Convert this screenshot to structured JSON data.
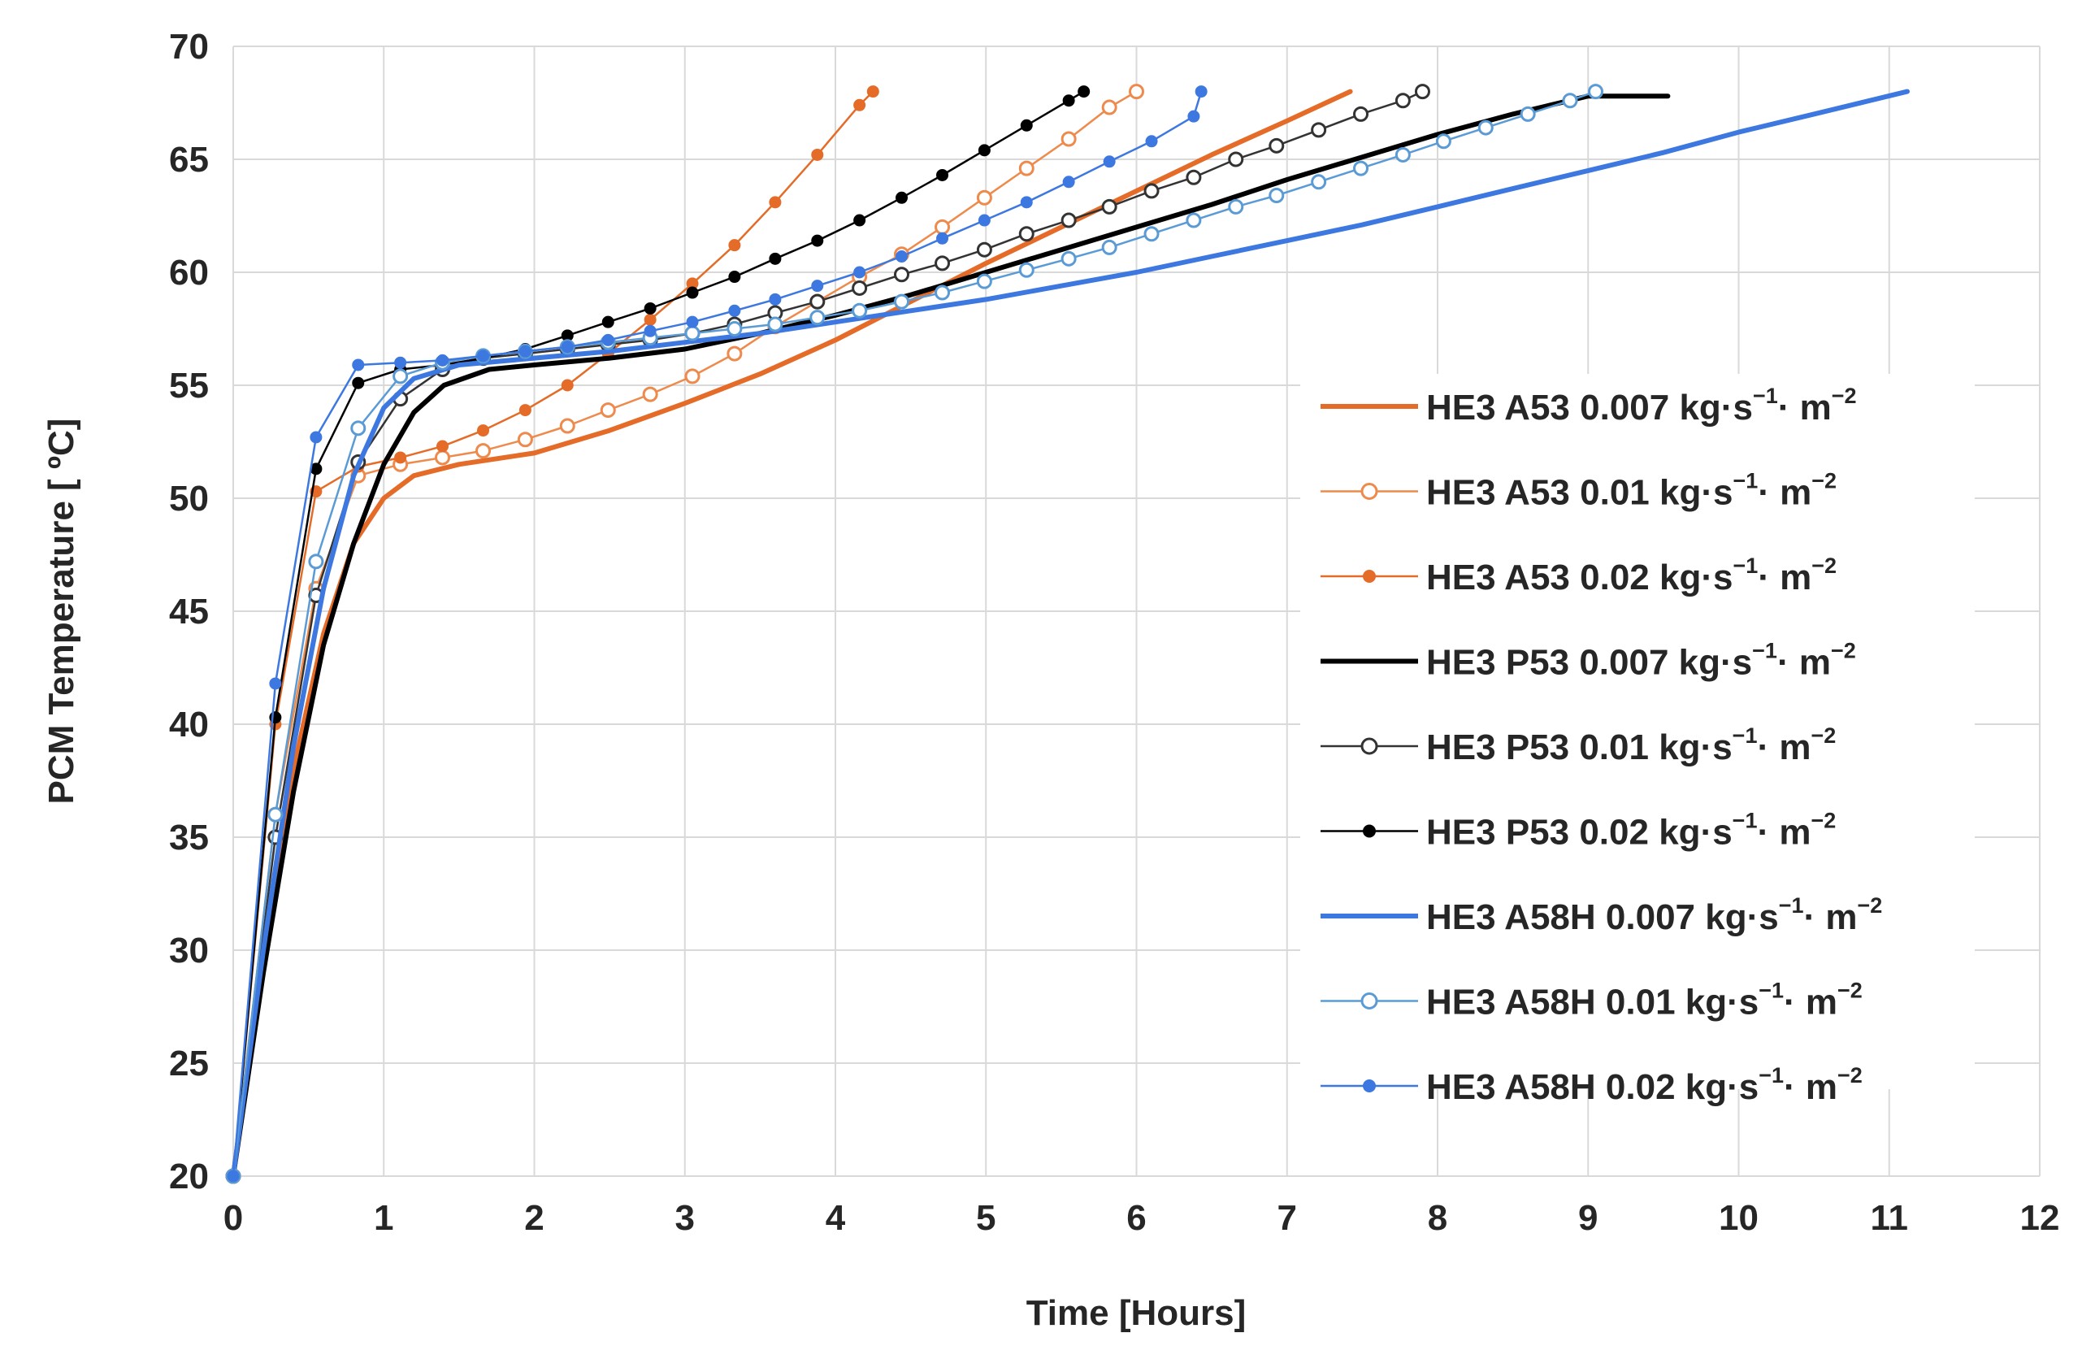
{
  "chart_data": {
    "type": "line",
    "title": "",
    "xlabel": "Time [Hours]",
    "ylabel": "PCM Temperature [ ºC]",
    "xlim": [
      0,
      12
    ],
    "ylim": [
      20,
      70
    ],
    "x_ticks": [
      0,
      1,
      2,
      3,
      4,
      5,
      6,
      7,
      8,
      9,
      10,
      11,
      12
    ],
    "y_ticks": [
      20,
      25,
      30,
      35,
      40,
      45,
      50,
      55,
      60,
      65,
      70
    ],
    "grid": true,
    "legend_position": "right",
    "series": [
      {
        "name": "HE3 A53 0.007 kg·s⁻¹· m⁻²",
        "legend_text": "HE3 A53 0.007 kg·s",
        "legend_sup1": "−1",
        "legend_mid": "· m",
        "legend_sup2": "−2",
        "color": "#e46c28",
        "marker": "none",
        "width": 6,
        "x": [
          0,
          0.2,
          0.4,
          0.6,
          0.8,
          1.0,
          1.2,
          1.5,
          2.0,
          2.5,
          3.0,
          3.5,
          4.0,
          4.5,
          5.0,
          5.5,
          6.0,
          6.5,
          7.0,
          7.42
        ],
        "y": [
          20,
          30,
          38,
          44,
          48,
          50,
          51,
          51.5,
          52,
          53,
          54.2,
          55.5,
          57,
          58.7,
          60.4,
          62,
          63.6,
          65.2,
          66.7,
          68
        ]
      },
      {
        "name": "HE3 A53 0.01 kg·s⁻¹· m⁻²",
        "legend_text": "HE3 A53 0.01 kg·s",
        "legend_sup1": "−1",
        "legend_mid": "· m",
        "legend_sup2": "−2",
        "color": "#ed8a4c",
        "marker": "open-circle",
        "width": 2.5,
        "x": [
          0,
          0.28,
          0.55,
          0.83,
          1.11,
          1.39,
          1.66,
          1.94,
          2.22,
          2.49,
          2.77,
          3.05,
          3.33,
          3.6,
          3.88,
          4.16,
          4.44,
          4.71,
          4.99,
          5.27,
          5.55,
          5.82,
          6.0
        ],
        "y": [
          20,
          36,
          46,
          51,
          51.5,
          51.8,
          52.1,
          52.6,
          53.2,
          53.9,
          54.6,
          55.4,
          56.4,
          57.6,
          58.7,
          59.8,
          60.8,
          62,
          63.3,
          64.6,
          65.9,
          67.3,
          68
        ]
      },
      {
        "name": "HE3 A53 0.02 kg·s⁻¹· m⁻²",
        "legend_text": "HE3 A53 0.02 kg·s",
        "legend_sup1": "−1",
        "legend_mid": "· m",
        "legend_sup2": "−2",
        "color": "#e46c28",
        "marker": "filled-circle",
        "width": 2.5,
        "x": [
          0,
          0.28,
          0.55,
          0.83,
          1.11,
          1.39,
          1.66,
          1.94,
          2.22,
          2.49,
          2.77,
          3.05,
          3.33,
          3.6,
          3.88,
          4.16,
          4.25
        ],
        "y": [
          20,
          40,
          50.3,
          51.4,
          51.8,
          52.3,
          53,
          53.9,
          55,
          56.4,
          57.9,
          59.5,
          61.2,
          63.1,
          65.2,
          67.4,
          68
        ]
      },
      {
        "name": "HE3 P53 0.007 kg·s⁻¹· m⁻²",
        "legend_text": "HE3 P53 0.007 kg·s",
        "legend_sup1": "−1",
        "legend_mid": "· m",
        "legend_sup2": "−2",
        "color": "#000000",
        "marker": "none",
        "width": 6,
        "x": [
          0,
          0.2,
          0.4,
          0.6,
          0.8,
          1.0,
          1.2,
          1.4,
          1.7,
          2.0,
          2.5,
          3.0,
          3.5,
          4.0,
          4.5,
          5.0,
          5.5,
          6.0,
          6.5,
          7.0,
          7.5,
          8.0,
          8.5,
          9.0,
          9.53
        ],
        "y": [
          20,
          29,
          37,
          43.5,
          48,
          51.5,
          53.8,
          55,
          55.7,
          55.9,
          56.2,
          56.6,
          57.3,
          58.1,
          59,
          60,
          61,
          62,
          63,
          64.1,
          65.1,
          66.1,
          67,
          67.8,
          67.8
        ]
      },
      {
        "name": "HE3 P53 0.01 kg·s⁻¹· m⁻²",
        "legend_text": "HE3 P53 0.01 kg·s",
        "legend_sup1": "−1",
        "legend_mid": "· m",
        "legend_sup2": "−2",
        "color": "#333333",
        "marker": "open-circle",
        "width": 2.5,
        "x": [
          0,
          0.28,
          0.55,
          0.83,
          1.11,
          1.39,
          1.66,
          1.94,
          2.22,
          2.49,
          2.77,
          3.05,
          3.33,
          3.6,
          3.88,
          4.16,
          4.44,
          4.71,
          4.99,
          5.27,
          5.55,
          5.82,
          6.1,
          6.38,
          6.66,
          6.93,
          7.21,
          7.49,
          7.77,
          7.9
        ],
        "y": [
          20,
          35,
          45.7,
          51.6,
          54.4,
          55.7,
          56.2,
          56.4,
          56.6,
          56.8,
          57,
          57.3,
          57.7,
          58.2,
          58.7,
          59.3,
          59.9,
          60.4,
          61,
          61.7,
          62.3,
          62.9,
          63.6,
          64.2,
          65,
          65.6,
          66.3,
          67,
          67.6,
          68
        ]
      },
      {
        "name": "HE3 P53 0.02 kg·s⁻¹· m⁻²",
        "legend_text": "HE3 P53 0.02 kg·s",
        "legend_sup1": "−1",
        "legend_mid": "· m",
        "legend_sup2": "−2",
        "color": "#000000",
        "marker": "filled-circle",
        "width": 2.5,
        "x": [
          0,
          0.28,
          0.55,
          0.83,
          1.11,
          1.39,
          1.66,
          1.94,
          2.22,
          2.49,
          2.77,
          3.05,
          3.33,
          3.6,
          3.88,
          4.16,
          4.44,
          4.71,
          4.99,
          5.27,
          5.55,
          5.65
        ],
        "y": [
          20,
          40.3,
          51.3,
          55.1,
          55.7,
          55.9,
          56.2,
          56.6,
          57.2,
          57.8,
          58.4,
          59.1,
          59.8,
          60.6,
          61.4,
          62.3,
          63.3,
          64.3,
          65.4,
          66.5,
          67.6,
          68
        ]
      },
      {
        "name": "HE3 A58H 0.007 kg·s⁻¹· m⁻²",
        "legend_text": "HE3 A58H 0.007 kg·s",
        "legend_sup1": "−1",
        "legend_mid": "· m",
        "legend_sup2": "−2",
        "color": "#3d78e0",
        "marker": "none",
        "width": 6,
        "x": [
          0,
          0.2,
          0.4,
          0.6,
          0.8,
          1.0,
          1.2,
          1.5,
          2.0,
          2.5,
          3.0,
          3.5,
          4.0,
          4.5,
          5.0,
          5.5,
          6.0,
          6.5,
          7.0,
          7.5,
          8.0,
          8.5,
          9.0,
          9.5,
          10.0,
          10.5,
          11.12
        ],
        "y": [
          20,
          30,
          39,
          46,
          51,
          54,
          55.3,
          55.9,
          56.2,
          56.5,
          56.9,
          57.3,
          57.8,
          58.3,
          58.8,
          59.4,
          60,
          60.7,
          61.4,
          62.1,
          62.9,
          63.7,
          64.5,
          65.3,
          66.2,
          67,
          68
        ]
      },
      {
        "name": "HE3 A58H 0.01 kg·s⁻¹· m⁻²",
        "legend_text": "HE3 A58H 0.01 kg·s",
        "legend_sup1": "−1",
        "legend_mid": "· m",
        "legend_sup2": "−2",
        "color": "#5b9bd5",
        "marker": "open-circle",
        "width": 2.5,
        "x": [
          0,
          0.28,
          0.55,
          0.83,
          1.11,
          1.39,
          1.66,
          1.94,
          2.22,
          2.49,
          2.77,
          3.05,
          3.33,
          3.6,
          3.88,
          4.16,
          4.44,
          4.71,
          4.99,
          5.27,
          5.55,
          5.82,
          6.1,
          6.38,
          6.66,
          6.93,
          7.21,
          7.49,
          7.77,
          8.04,
          8.32,
          8.6,
          8.88,
          9.05
        ],
        "y": [
          20,
          36,
          47.2,
          53.1,
          55.4,
          56,
          56.3,
          56.5,
          56.7,
          56.9,
          57.1,
          57.3,
          57.5,
          57.7,
          58,
          58.3,
          58.7,
          59.1,
          59.6,
          60.1,
          60.6,
          61.1,
          61.7,
          62.3,
          62.9,
          63.4,
          64,
          64.6,
          65.2,
          65.8,
          66.4,
          67,
          67.6,
          68
        ]
      },
      {
        "name": "HE3 A58H 0.02 kg·s⁻¹· m⁻²",
        "legend_text": "HE3 A58H 0.02 kg·s",
        "legend_sup1": "−1",
        "legend_mid": "· m",
        "legend_sup2": "−2",
        "color": "#3d78e0",
        "marker": "filled-circle",
        "width": 2.5,
        "x": [
          0,
          0.28,
          0.55,
          0.83,
          1.11,
          1.39,
          1.66,
          1.94,
          2.22,
          2.49,
          2.77,
          3.05,
          3.33,
          3.6,
          3.88,
          4.16,
          4.44,
          4.71,
          4.99,
          5.27,
          5.55,
          5.82,
          6.1,
          6.38,
          6.43
        ],
        "y": [
          20,
          41.8,
          52.7,
          55.9,
          56,
          56.1,
          56.3,
          56.5,
          56.7,
          57,
          57.4,
          57.8,
          58.3,
          58.8,
          59.4,
          60,
          60.7,
          61.5,
          62.3,
          63.1,
          64,
          64.9,
          65.8,
          66.9,
          68
        ]
      }
    ]
  }
}
